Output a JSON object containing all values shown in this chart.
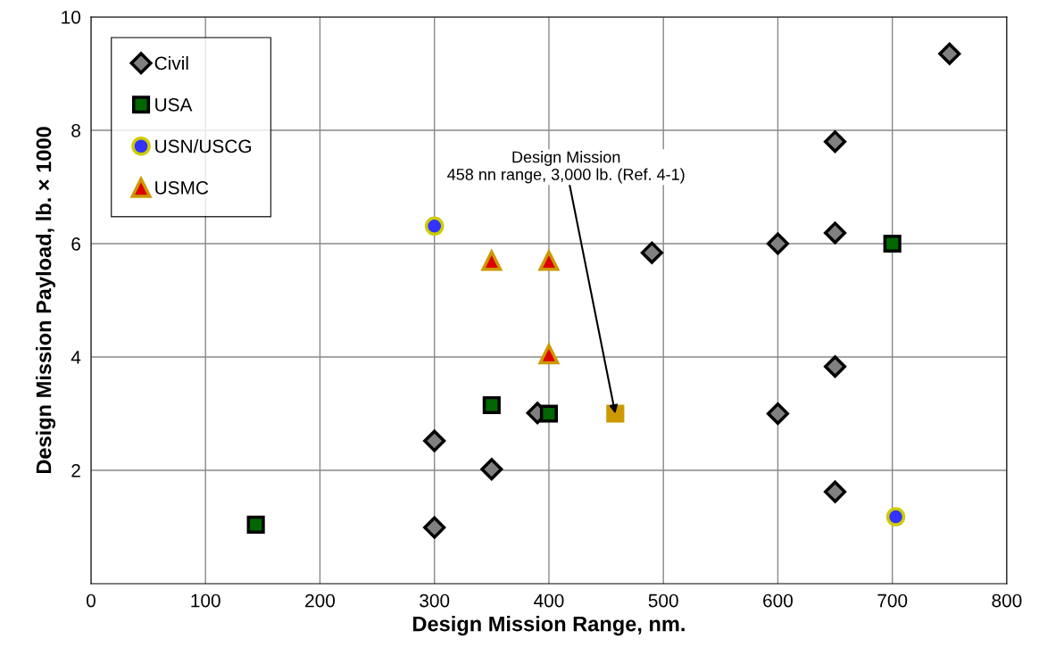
{
  "chart_data": {
    "type": "scatter",
    "xlabel": "Design Mission Range, nm.",
    "ylabel": "Design Mission Payload, lb. × 1000",
    "xlim": [
      0,
      800
    ],
    "xticks": [
      0,
      100,
      200,
      300,
      400,
      500,
      600,
      700,
      800
    ],
    "ylim": [
      0,
      10
    ],
    "yticks": [
      2,
      4,
      6,
      8,
      10
    ],
    "grid": true,
    "legend": "top left",
    "series": [
      {
        "name": "Civil",
        "color": "#808080",
        "marker": "diamond",
        "x": [
          300,
          300,
          350,
          390,
          490,
          600,
          600,
          650,
          650,
          650,
          650,
          750
        ],
        "values": [
          2.52,
          0.99,
          2.02,
          3.01,
          5.84,
          6.0,
          3.0,
          7.8,
          6.19,
          3.83,
          1.62,
          9.35
        ]
      },
      {
        "name": "USA",
        "color": "#006600",
        "marker": "square",
        "x": [
          144,
          350,
          400,
          700
        ],
        "values": [
          1.04,
          3.15,
          3.0,
          6.0
        ]
      },
      {
        "name": "USN/USCG",
        "color": "#3333ff",
        "marker": "circle",
        "x": [
          300,
          703
        ],
        "values": [
          6.31,
          1.18
        ]
      },
      {
        "name": "USMC",
        "color": "#dd0000",
        "marker": "triangle",
        "x": [
          350,
          400,
          400
        ],
        "values": [
          5.7,
          5.7,
          4.05
        ]
      },
      {
        "color": "#cc9900",
        "marker": "square",
        "x": [
          458
        ],
        "values": [
          3.0
        ]
      }
    ],
    "annotations": [
      {
        "text": "Design Mission\n458 nn range, 3,000 lb. (Ref. 4-1)",
        "x": 458,
        "y": 3.0
      }
    ]
  }
}
